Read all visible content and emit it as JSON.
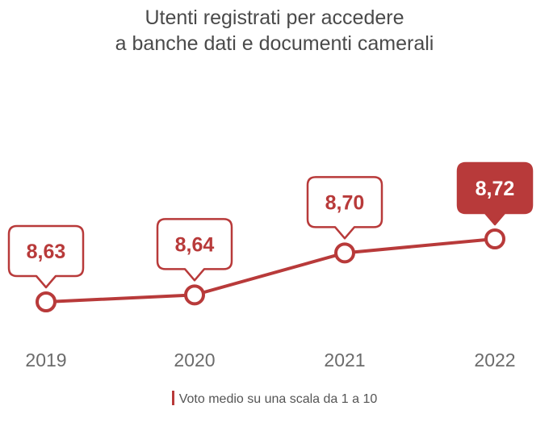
{
  "chart_data": {
    "type": "line",
    "title_lines": [
      "Utenti registrati per accedere",
      "a banche dati e documenti camerali"
    ],
    "categories": [
      "2019",
      "2020",
      "2021",
      "2022"
    ],
    "series": [
      {
        "name": "Voto medio su una scala da 1 a 10",
        "values": [
          8.63,
          8.64,
          8.7,
          8.72
        ],
        "labels": [
          "8,63",
          "8,64",
          "8,70",
          "8,72"
        ]
      }
    ],
    "highlight_index": 3,
    "ylim": [
      8.6,
      8.75
    ],
    "grid": false,
    "legend_position": "bottom-center"
  },
  "colors": {
    "accent": "#b83a3a",
    "title": "#4a4a4a",
    "axis_labels": "#6b6b6b",
    "callout_fill": "#ffffff",
    "highlight_text": "#ffffff"
  }
}
